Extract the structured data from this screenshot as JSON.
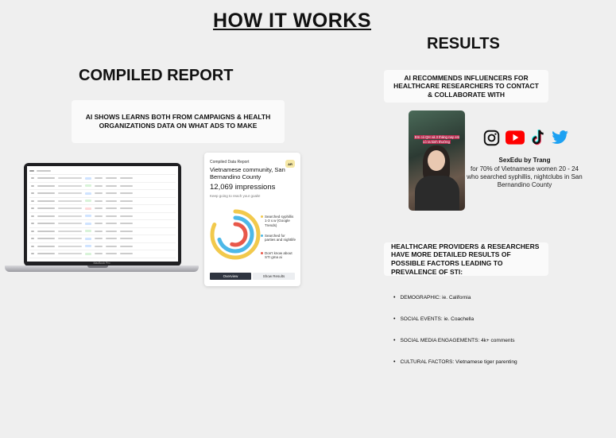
{
  "page": {
    "title": "HOW IT WORKS",
    "results_title": "RESULTS",
    "report_title": "COMPILED REPORT",
    "report_note": "AI  SHOWS LEARNS BOTH FROM CAMPAIGNS & HEALTH ORGANIZATIONS DATA ON WHAT ADS TO MAKE",
    "results_note": "AI  RECOMMENDS INFLUENCERS FOR HEALTHCARE RESEARCHERS TO CONTACT & COLLABORATE WITH",
    "hcp_note": "HEALTHCARE PROVIDERS & RESEARCHERS HAVE MORE DETAILED RESULTS OF POSSIBLE FACTORS LEADING TO PREVALENCE OF STI:"
  },
  "laptop": {
    "label": "MacBook Pro"
  },
  "report_card": {
    "label": "Compiled Data Report",
    "title": "Vietnamese community, San Bernandino County",
    "impressions": "12,069 impressions",
    "subtitle": "Keep going to reach your goals!",
    "badge": "AR",
    "legend": [
      {
        "text": "Searched syphillis 1-3 x.w (Google Trends)",
        "color": "#f2c94c"
      },
      {
        "text": "Searched for parties and nightlife",
        "color": "#4db8e8"
      },
      {
        "text": "Don't know about STI gma ai",
        "color": "#e8584a"
      }
    ],
    "rings": [
      {
        "fraction": 0.82,
        "color": "#f2c94c"
      },
      {
        "fraction": 0.7,
        "color": "#4db8e8"
      },
      {
        "fraction": 0.55,
        "color": "#e8584a"
      }
    ],
    "tab_overview": "Overview",
    "tab_results": "Show Results"
  },
  "phone": {
    "caption": "Em có QH và 3 tháng nay em có ra kinh thường"
  },
  "influencer": {
    "icons": [
      "instagram-icon",
      "youtube-icon",
      "tiktok-icon",
      "twitter-icon"
    ],
    "name": "SexEdu by Trang",
    "description": "for 70% of Vietnamese women 20 - 24 who searched syphillis, nightclubs in San Bernandino County"
  },
  "factors": [
    "DEMOGRAPHIC: ie. California",
    "SOCIAL EVENTS: ie. Coachella",
    "SOCIAL MEDIA ENGAGEMENTS: 4k+ comments",
    "CULTURAL FACTORS: Vietnamese tiger parenting"
  ]
}
